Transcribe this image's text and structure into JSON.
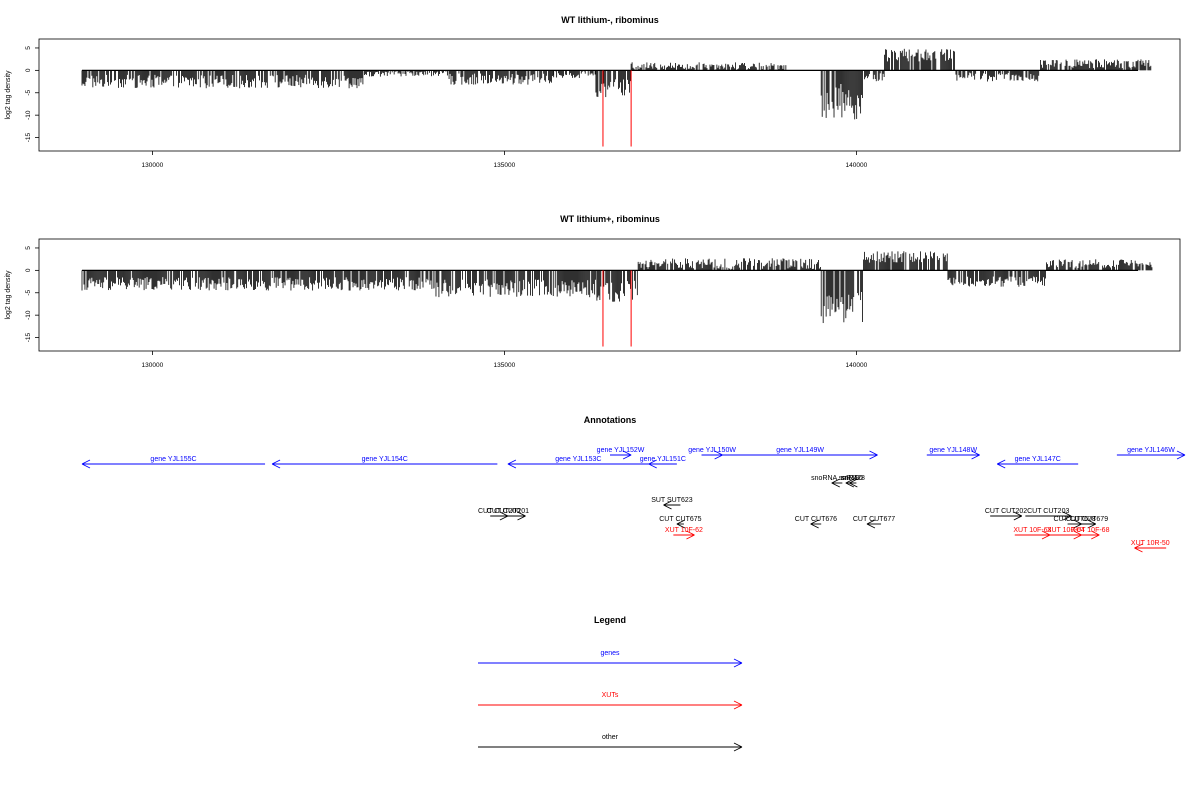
{
  "colors": {
    "gene": "#0000ff",
    "xut": "#ff0000",
    "other": "#000000",
    "marker": "#ff0000",
    "bar": "#000000"
  },
  "chart_data": [
    {
      "type": "bar",
      "title": "WT lithium-, ribominus",
      "ylabel": "log2 tag density",
      "xlim": [
        128300,
        144800
      ],
      "ylim": [
        -18,
        7
      ],
      "xticks": [
        "130000",
        "135000",
        "140000"
      ],
      "yticks": [
        "5",
        "0",
        "-5",
        "-10",
        "-15"
      ],
      "markers_x": [
        136400,
        136800
      ],
      "segments": [
        {
          "x0": 129000,
          "x1": 133000,
          "mean": -2.5,
          "jit": 1.5,
          "dir": -1
        },
        {
          "x0": 133000,
          "x1": 134200,
          "mean": -0.8,
          "jit": 0.6,
          "dir": -1
        },
        {
          "x0": 134200,
          "x1": 135700,
          "mean": -2.0,
          "jit": 1.3,
          "dir": -1
        },
        {
          "x0": 135700,
          "x1": 136300,
          "mean": -1.0,
          "jit": 0.8,
          "dir": -1
        },
        {
          "x0": 136300,
          "x1": 136800,
          "mean": -4.0,
          "jit": 2.0,
          "dir": -1
        },
        {
          "x0": 136800,
          "x1": 139000,
          "mean": 1.0,
          "jit": 0.8,
          "dir": 1
        },
        {
          "x0": 139500,
          "x1": 140100,
          "mean": -7.0,
          "jit": 4.0,
          "dir": -1
        },
        {
          "x0": 140100,
          "x1": 140400,
          "mean": -1.5,
          "jit": 1.0,
          "dir": -1
        },
        {
          "x0": 140400,
          "x1": 141400,
          "mean": 3.5,
          "jit": 1.5,
          "dir": 1
        },
        {
          "x0": 141400,
          "x1": 142600,
          "mean": -1.5,
          "jit": 1.0,
          "dir": -1
        },
        {
          "x0": 142600,
          "x1": 144200,
          "mean": 1.5,
          "jit": 1.0,
          "dir": 1
        }
      ]
    },
    {
      "type": "bar",
      "title": "WT lithium+, ribominus",
      "ylabel": "log2 tag density",
      "xlim": [
        128300,
        144800
      ],
      "ylim": [
        -18,
        7
      ],
      "xticks": [
        "130000",
        "135000",
        "140000"
      ],
      "yticks": [
        "5",
        "0",
        "-5",
        "-10",
        "-15"
      ],
      "markers_x": [
        136400,
        136800
      ],
      "segments": [
        {
          "x0": 129000,
          "x1": 134000,
          "mean": -3.0,
          "jit": 1.5,
          "dir": -1
        },
        {
          "x0": 134000,
          "x1": 136300,
          "mean": -4.0,
          "jit": 2.0,
          "dir": -1
        },
        {
          "x0": 136300,
          "x1": 136900,
          "mean": -4.5,
          "jit": 2.5,
          "dir": -1
        },
        {
          "x0": 136900,
          "x1": 139500,
          "mean": 1.5,
          "jit": 1.2,
          "dir": 1
        },
        {
          "x0": 139500,
          "x1": 140100,
          "mean": -8.0,
          "jit": 4.0,
          "dir": -1
        },
        {
          "x0": 140100,
          "x1": 141300,
          "mean": 3.0,
          "jit": 1.3,
          "dir": 1
        },
        {
          "x0": 141300,
          "x1": 142700,
          "mean": -2.5,
          "jit": 1.2,
          "dir": -1
        },
        {
          "x0": 142700,
          "x1": 144200,
          "mean": 1.5,
          "jit": 1.0,
          "dir": 1
        }
      ]
    }
  ],
  "annotations": {
    "title": "Annotations",
    "features": [
      {
        "label": "gene YJL155C",
        "type": "gene",
        "x0": 129000,
        "x1": 131600,
        "strand": "-",
        "row": 1
      },
      {
        "label": "gene YJL154C",
        "type": "gene",
        "x0": 131700,
        "x1": 134900,
        "strand": "-",
        "row": 1
      },
      {
        "label": "gene YJL153C",
        "type": "gene",
        "x0": 135050,
        "x1": 137050,
        "strand": "-",
        "row": 1
      },
      {
        "label": "gene YJL152W",
        "type": "gene",
        "x0": 136500,
        "x1": 136800,
        "strand": "+",
        "row": 0
      },
      {
        "label": "gene YJL151C",
        "type": "gene",
        "x0": 137050,
        "x1": 137450,
        "strand": "-",
        "row": 1
      },
      {
        "label": "gene YJL150W",
        "type": "gene",
        "x0": 137800,
        "x1": 138100,
        "strand": "+",
        "row": 0
      },
      {
        "label": "gene YJL149W",
        "type": "gene",
        "x0": 138100,
        "x1": 140300,
        "strand": "+",
        "row": 0
      },
      {
        "label": "gene YJL148W",
        "type": "gene",
        "x0": 141000,
        "x1": 141750,
        "strand": "+",
        "row": 0
      },
      {
        "label": "gene YJL147C",
        "type": "gene",
        "x0": 142000,
        "x1": 143150,
        "strand": "-",
        "row": 1
      },
      {
        "label": "gene YJL146W",
        "type": "gene",
        "x0": 143700,
        "x1": 145050,
        "strand": "+",
        "row": 0
      },
      {
        "label": "snoRNA snR190",
        "type": "other",
        "x0": 139650,
        "x1": 139800,
        "strand": "-",
        "row": 2
      },
      {
        "label": "snR4",
        "type": "other",
        "x0": 139850,
        "x1": 139950,
        "strand": "-",
        "row": 2
      },
      {
        "label": "snR128",
        "type": "other",
        "x0": 139900,
        "x1": 140000,
        "strand": "-",
        "row": 2
      },
      {
        "label": "SUT SUT623",
        "type": "other",
        "x0": 137260,
        "x1": 137500,
        "strand": "-",
        "row": 3
      },
      {
        "label": "CUT CUT201",
        "type": "other",
        "x0": 134800,
        "x1": 135300,
        "strand": "+",
        "row": 4
      },
      {
        "label": "CUT CUT200",
        "type": "other",
        "x0": 134800,
        "x1": 135050,
        "strand": "+",
        "row": 4
      },
      {
        "label": "CUT CUT675",
        "type": "other",
        "x0": 137450,
        "x1": 137550,
        "strand": "-",
        "row": 5
      },
      {
        "label": "XUT 10F-62",
        "type": "xut",
        "x0": 137400,
        "x1": 137700,
        "strand": "+",
        "row": 6
      },
      {
        "label": "CUT CUT676",
        "type": "other",
        "x0": 139350,
        "x1": 139500,
        "strand": "-",
        "row": 5
      },
      {
        "label": "CUT CUT677",
        "type": "other",
        "x0": 140150,
        "x1": 140350,
        "strand": "-",
        "row": 5
      },
      {
        "label": "CUT CUT202",
        "type": "other",
        "x0": 141900,
        "x1": 142350,
        "strand": "+",
        "row": 4
      },
      {
        "label": "CUT CUT203",
        "type": "other",
        "x0": 142400,
        "x1": 143050,
        "strand": "+",
        "row": 4
      },
      {
        "label": "CUT CUT678",
        "type": "other",
        "x0": 143000,
        "x1": 143200,
        "strand": "+",
        "row": 5
      },
      {
        "label": "CUT CUT679",
        "type": "other",
        "x0": 143150,
        "x1": 143400,
        "strand": "+",
        "row": 5
      },
      {
        "label": "XUT 10F-63",
        "type": "xut",
        "x0": 142250,
        "x1": 142750,
        "strand": "+",
        "row": 6
      },
      {
        "label": "XUT 10F-64",
        "type": "xut",
        "x0": 142750,
        "x1": 143200,
        "strand": "+",
        "row": 6
      },
      {
        "label": "XUT 10F-68",
        "type": "xut",
        "x0": 143200,
        "x1": 143450,
        "strand": "+",
        "row": 6
      },
      {
        "label": "XUT 10R-50",
        "type": "xut",
        "x0": 143950,
        "x1": 144400,
        "strand": "-",
        "row": 7
      }
    ]
  },
  "legend": {
    "title": "Legend",
    "items": [
      {
        "label": "genes",
        "type": "gene"
      },
      {
        "label": "XUTs",
        "type": "xut"
      },
      {
        "label": "other",
        "type": "other"
      }
    ]
  }
}
